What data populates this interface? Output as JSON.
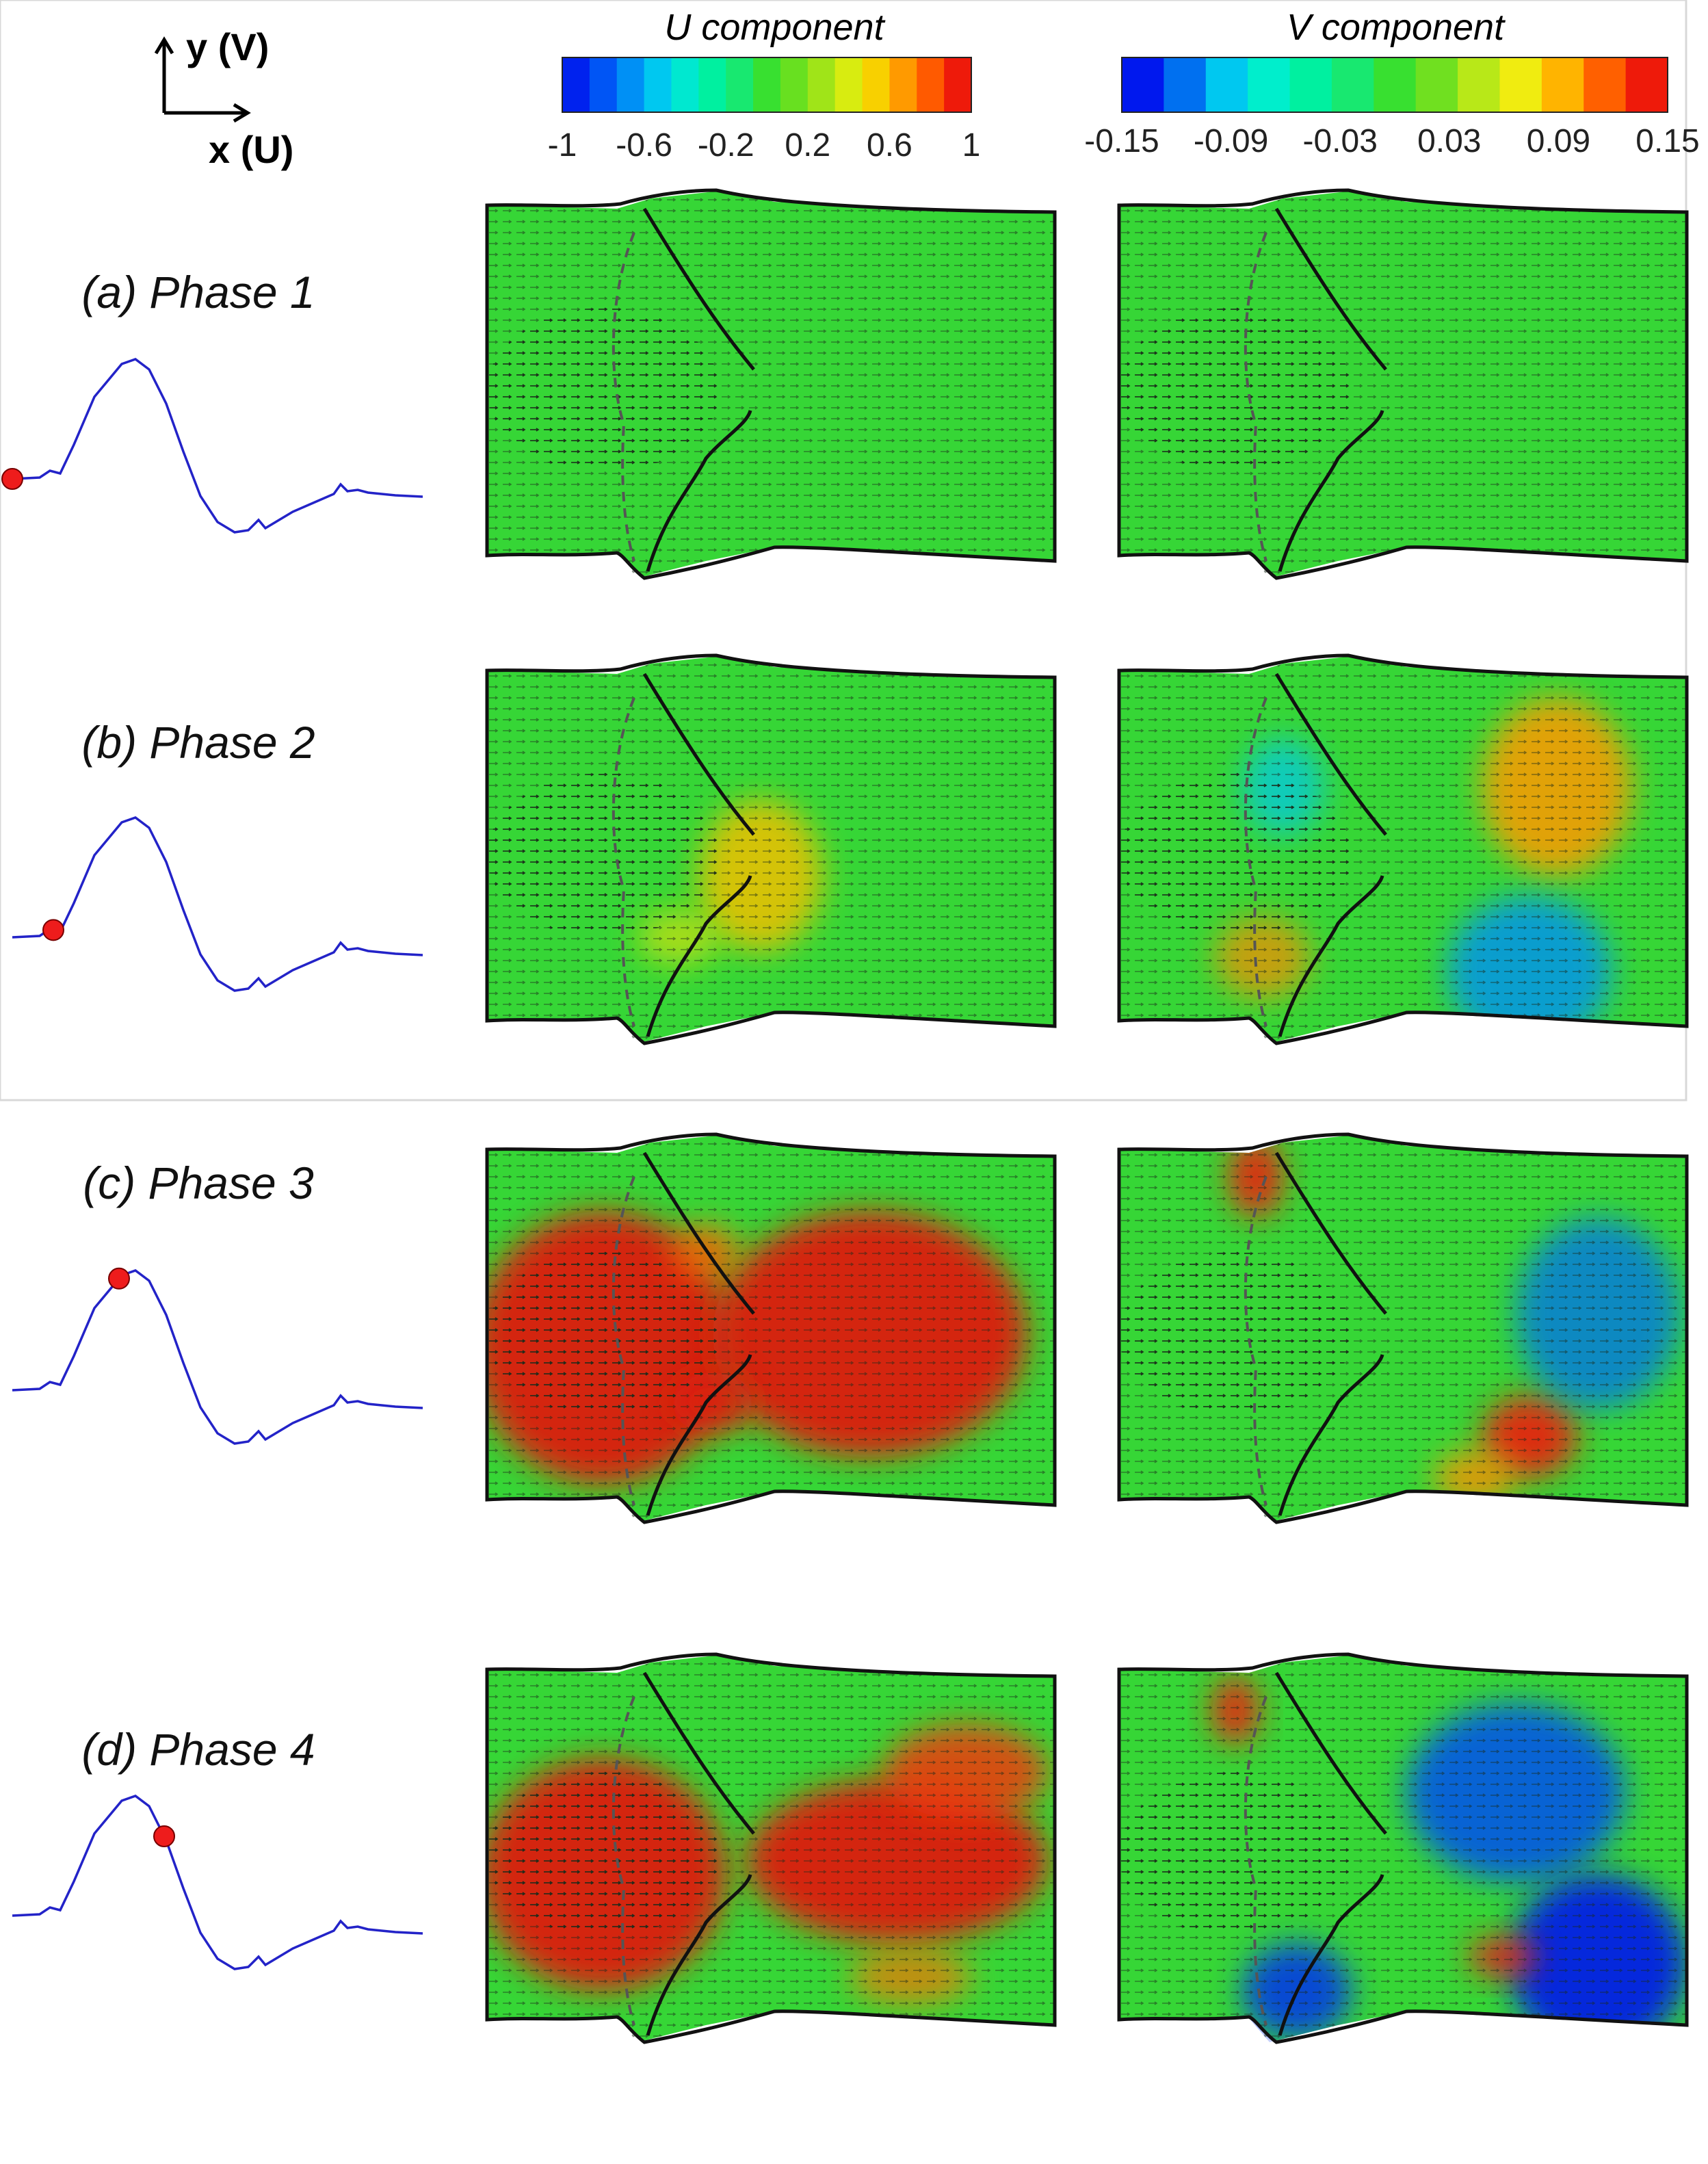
{
  "axes_indicator": {
    "y_label": "y (V)",
    "x_label": "x (U)"
  },
  "colorbars": [
    {
      "title": "U component",
      "ticks": [
        "-1",
        "-0.6",
        "-0.2",
        "0.2",
        "0.6",
        "1"
      ],
      "colors": [
        "#0022ee",
        "#0055f5",
        "#0090f5",
        "#00c8f0",
        "#00e8d0",
        "#00f0a0",
        "#18e870",
        "#38e030",
        "#68e020",
        "#a0e418",
        "#d8ec10",
        "#f8d000",
        "#ff9a00",
        "#ff5a00",
        "#ee1a0a"
      ]
    },
    {
      "title": "V component",
      "ticks": [
        "-0.15",
        "-0.09",
        "-0.03",
        "0.03",
        "0.09",
        "0.15"
      ],
      "colors": [
        "#0018ee",
        "#0070f0",
        "#00c8f0",
        "#00eecc",
        "#00f0a0",
        "#18e870",
        "#38e030",
        "#70e020",
        "#b8e818",
        "#f0ec10",
        "#ffb400",
        "#ff6000",
        "#ee1a0a"
      ]
    }
  ],
  "phases": [
    {
      "label": "(a) Phase 1",
      "marker_t": 0.0
    },
    {
      "label": "(b) Phase 2",
      "marker_t": 0.1
    },
    {
      "label": "(c) Phase 3",
      "marker_t": 0.26
    },
    {
      "label": "(d) Phase 4",
      "marker_t": 0.37
    }
  ],
  "colors": {
    "field_bg": "#36d636",
    "waveform": "#2323c8",
    "marker": "#ee1c1c",
    "wall": "#111111"
  }
}
